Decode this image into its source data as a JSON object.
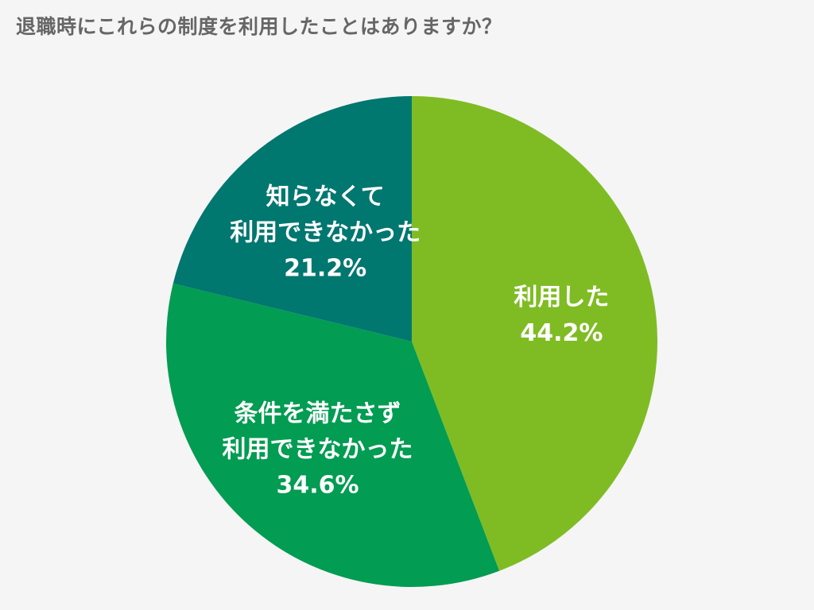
{
  "chart_data": {
    "type": "pie",
    "title": "退職時にこれらの制度を利用したことはありますか？",
    "slices": [
      {
        "label_lines": [
          "利用した"
        ],
        "value": 44.2,
        "value_label": "44.2%",
        "color": "#7fbc24"
      },
      {
        "label_lines": [
          "条件を満たさず",
          "利用できなかった"
        ],
        "value": 34.6,
        "value_label": "34.6%",
        "color": "#029c52"
      },
      {
        "label_lines": [
          "知らなくて",
          "利用できなかった"
        ],
        "value": 21.2,
        "value_label": "21.2%",
        "color": "#00776f"
      }
    ]
  }
}
